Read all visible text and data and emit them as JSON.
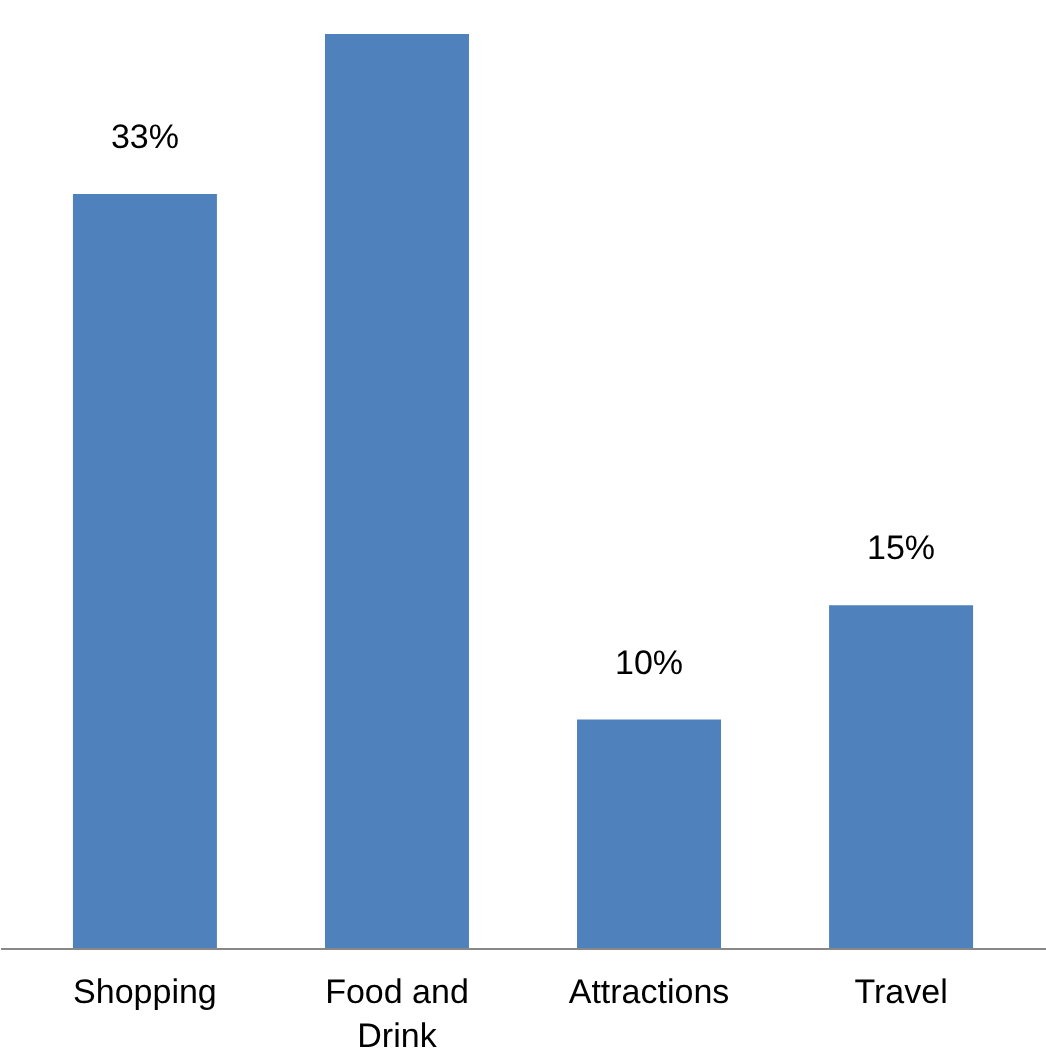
{
  "chart_data": {
    "type": "bar",
    "categories": [
      "Shopping",
      "Food and Drink",
      "Attractions",
      "Travel"
    ],
    "values": [
      33,
      40,
      10,
      15
    ],
    "value_labels": [
      "33%",
      null,
      "10%",
      "15%"
    ],
    "color": "#4f81bd"
  }
}
